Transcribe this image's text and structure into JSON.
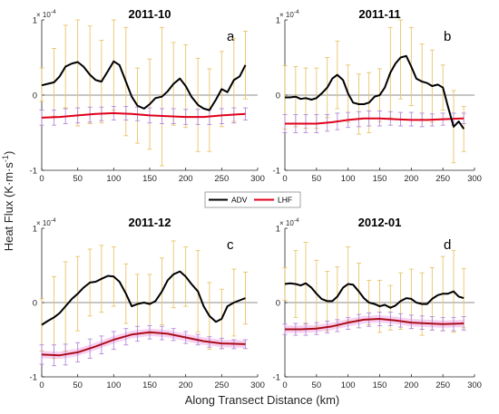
{
  "figure": {
    "ylabel": "Heat Flux (K·m·s",
    "ylabel_sup": "-1",
    "ylabel_tail": ")",
    "xlabel": "Along Transect Distance (km)",
    "exponent_base": "× 10",
    "exponent_power": "-4"
  },
  "legend": {
    "items": [
      {
        "label": "ADV",
        "color": "#000000"
      },
      {
        "label": "LHF",
        "color": "#e0001a"
      }
    ]
  },
  "colors": {
    "adv": "#000000",
    "lhf": "#e0001a",
    "adv_err": "#e9c56a",
    "lhf_err": "#b48ad8",
    "lhf_shade": "#f3c3ee",
    "zero_line": "#8c8c8c"
  },
  "chart_data": [
    {
      "type": "line",
      "title": "2011-10",
      "panel_label": "a",
      "xlim": [
        0,
        300
      ],
      "ylim": [
        -1,
        1
      ],
      "xticks": [
        "0",
        "50",
        "100",
        "150",
        "200",
        "250",
        "300"
      ],
      "yticks": [
        "-1",
        "0",
        "1"
      ],
      "y_unit": "1e-4",
      "adv": {
        "x": [
          0,
          8,
          17,
          25,
          33,
          42,
          50,
          58,
          67,
          75,
          83,
          92,
          100,
          108,
          117,
          125,
          133,
          142,
          150,
          158,
          167,
          175,
          183,
          192,
          200,
          208,
          217,
          225,
          233,
          242,
          250,
          258,
          267,
          275,
          283
        ],
        "y": [
          0.13,
          0.15,
          0.17,
          0.25,
          0.38,
          0.42,
          0.44,
          0.38,
          0.27,
          0.2,
          0.18,
          0.32,
          0.45,
          0.4,
          0.18,
          -0.02,
          -0.14,
          -0.18,
          -0.12,
          -0.04,
          -0.02,
          0.05,
          0.15,
          0.22,
          0.12,
          -0.02,
          -0.13,
          -0.18,
          -0.2,
          -0.06,
          0.08,
          0.04,
          0.2,
          0.25,
          0.4
        ]
      },
      "adv_err": {
        "x": [
          0,
          17,
          33,
          50,
          67,
          83,
          100,
          117,
          133,
          150,
          167,
          183,
          200,
          217,
          233,
          250,
          267,
          283
        ],
        "y": [
          0.14,
          0.17,
          0.38,
          0.44,
          0.27,
          0.18,
          0.45,
          0.18,
          -0.14,
          -0.12,
          -0.02,
          0.15,
          0.12,
          -0.13,
          -0.2,
          0.08,
          0.2,
          0.4
        ],
        "err": [
          0.22,
          0.45,
          0.55,
          0.85,
          0.65,
          0.55,
          0.65,
          0.72,
          0.5,
          0.6,
          0.92,
          0.55,
          0.55,
          0.62,
          0.55,
          0.5,
          0.55,
          0.45
        ]
      },
      "lhf": {
        "x": [
          0,
          25,
          50,
          75,
          100,
          125,
          150,
          175,
          200,
          225,
          250,
          283
        ],
        "y": [
          -0.3,
          -0.29,
          -0.27,
          -0.25,
          -0.24,
          -0.25,
          -0.27,
          -0.28,
          -0.29,
          -0.29,
          -0.27,
          -0.25
        ]
      },
      "lhf_err": {
        "x": [
          0,
          17,
          33,
          50,
          67,
          83,
          100,
          117,
          133,
          150,
          167,
          183,
          200,
          217,
          233,
          250,
          267,
          283
        ],
        "y": [
          -0.3,
          -0.3,
          -0.28,
          -0.27,
          -0.26,
          -0.25,
          -0.24,
          -0.24,
          -0.25,
          -0.27,
          -0.28,
          -0.28,
          -0.29,
          -0.29,
          -0.29,
          -0.28,
          -0.27,
          -0.25
        ],
        "err": [
          0.1,
          0.1,
          0.1,
          0.1,
          0.1,
          0.09,
          0.09,
          0.09,
          0.09,
          0.1,
          0.1,
          0.1,
          0.1,
          0.1,
          0.1,
          0.1,
          0.1,
          0.08
        ]
      },
      "lhf_shaded": false
    },
    {
      "type": "line",
      "title": "2011-11",
      "panel_label": "b",
      "xlim": [
        0,
        300
      ],
      "ylim": [
        -1,
        1
      ],
      "xticks": [
        "0",
        "50",
        "100",
        "150",
        "200",
        "250",
        "300"
      ],
      "yticks": [
        "-1",
        "0",
        "1"
      ],
      "y_unit": "1e-4",
      "adv": {
        "x": [
          0,
          8,
          17,
          25,
          33,
          42,
          50,
          58,
          67,
          75,
          83,
          92,
          100,
          108,
          117,
          125,
          133,
          142,
          150,
          158,
          167,
          175,
          183,
          192,
          200,
          208,
          217,
          225,
          233,
          242,
          250,
          258,
          267,
          275,
          283
        ],
        "y": [
          -0.03,
          -0.03,
          -0.02,
          -0.05,
          -0.04,
          -0.06,
          -0.04,
          0.02,
          0.1,
          0.22,
          0.27,
          0.2,
          0.02,
          -0.1,
          -0.12,
          -0.12,
          -0.1,
          -0.02,
          0.0,
          0.1,
          0.3,
          0.42,
          0.5,
          0.52,
          0.38,
          0.22,
          0.18,
          0.16,
          0.12,
          0.14,
          0.1,
          -0.15,
          -0.42,
          -0.35,
          -0.45
        ]
      },
      "adv_err": {
        "x": [
          0,
          17,
          33,
          50,
          67,
          83,
          100,
          117,
          133,
          150,
          167,
          183,
          200,
          217,
          233,
          250,
          267,
          283
        ],
        "y": [
          -0.03,
          -0.02,
          -0.04,
          -0.04,
          0.1,
          0.27,
          0.02,
          -0.12,
          -0.1,
          0.0,
          0.3,
          0.5,
          0.38,
          0.18,
          0.12,
          0.1,
          -0.42,
          -0.45
        ],
        "err": [
          0.42,
          0.4,
          0.4,
          0.4,
          0.4,
          0.45,
          0.38,
          0.4,
          0.4,
          0.35,
          0.6,
          0.55,
          0.52,
          0.5,
          0.48,
          0.3,
          0.48,
          0.3
        ]
      },
      "lhf": {
        "x": [
          0,
          25,
          50,
          75,
          100,
          125,
          150,
          175,
          200,
          225,
          250,
          283
        ],
        "y": [
          -0.38,
          -0.38,
          -0.38,
          -0.36,
          -0.33,
          -0.31,
          -0.31,
          -0.32,
          -0.33,
          -0.33,
          -0.32,
          -0.31
        ]
      },
      "lhf_err": {
        "x": [
          0,
          17,
          33,
          50,
          67,
          83,
          100,
          117,
          133,
          150,
          167,
          183,
          200,
          217,
          233,
          250,
          267,
          283
        ],
        "y": [
          -0.38,
          -0.38,
          -0.38,
          -0.38,
          -0.37,
          -0.35,
          -0.33,
          -0.32,
          -0.31,
          -0.31,
          -0.31,
          -0.32,
          -0.32,
          -0.33,
          -0.33,
          -0.32,
          -0.32,
          -0.31
        ],
        "err": [
          0.12,
          0.12,
          0.12,
          0.12,
          0.11,
          0.11,
          0.1,
          0.1,
          0.1,
          0.1,
          0.09,
          0.09,
          0.09,
          0.09,
          0.08,
          0.08,
          0.08,
          0.07
        ]
      },
      "lhf_shaded": false
    },
    {
      "type": "line",
      "title": "2011-12",
      "panel_label": "c",
      "xlim": [
        0,
        300
      ],
      "ylim": [
        -1,
        1
      ],
      "xticks": [
        "0",
        "50",
        "100",
        "150",
        "200",
        "250",
        "300"
      ],
      "yticks": [
        "-1",
        "0",
        "1"
      ],
      "y_unit": "1e-4",
      "adv": {
        "x": [
          0,
          8,
          17,
          25,
          33,
          42,
          50,
          58,
          67,
          75,
          83,
          92,
          100,
          108,
          117,
          125,
          133,
          142,
          150,
          158,
          167,
          175,
          183,
          192,
          200,
          208,
          217,
          225,
          233,
          242,
          250,
          258,
          267,
          275,
          283
        ],
        "y": [
          -0.3,
          -0.25,
          -0.2,
          -0.14,
          -0.05,
          0.05,
          0.12,
          0.2,
          0.27,
          0.28,
          0.32,
          0.36,
          0.35,
          0.28,
          0.12,
          -0.05,
          -0.02,
          0.0,
          -0.02,
          0.02,
          0.15,
          0.3,
          0.38,
          0.42,
          0.35,
          0.25,
          0.15,
          -0.05,
          -0.18,
          -0.26,
          -0.22,
          -0.05,
          0.0,
          0.03,
          0.06
        ]
      },
      "adv_err": {
        "x": [
          0,
          17,
          33,
          50,
          67,
          83,
          100,
          117,
          133,
          150,
          167,
          183,
          200,
          217,
          233,
          250,
          267,
          283
        ],
        "y": [
          -0.3,
          -0.2,
          -0.05,
          0.12,
          0.27,
          0.32,
          0.35,
          0.12,
          -0.02,
          -0.02,
          0.15,
          0.38,
          0.35,
          0.15,
          -0.18,
          -0.22,
          0.0,
          0.06
        ],
        "err": [
          0.35,
          0.55,
          0.6,
          0.5,
          0.45,
          0.45,
          0.4,
          0.4,
          0.4,
          0.4,
          0.45,
          0.45,
          0.4,
          0.55,
          0.45,
          0.4,
          0.45,
          0.35
        ]
      },
      "lhf": {
        "x": [
          0,
          25,
          50,
          75,
          100,
          125,
          150,
          175,
          200,
          225,
          250,
          283
        ],
        "y": [
          -0.7,
          -0.71,
          -0.67,
          -0.59,
          -0.5,
          -0.43,
          -0.4,
          -0.42,
          -0.47,
          -0.52,
          -0.55,
          -0.56
        ]
      },
      "lhf_err": {
        "x": [
          0,
          17,
          33,
          50,
          67,
          83,
          100,
          117,
          133,
          150,
          167,
          183,
          200,
          217,
          233,
          250,
          267,
          283
        ],
        "y": [
          -0.7,
          -0.71,
          -0.7,
          -0.67,
          -0.62,
          -0.57,
          -0.51,
          -0.46,
          -0.42,
          -0.4,
          -0.41,
          -0.43,
          -0.47,
          -0.5,
          -0.53,
          -0.55,
          -0.56,
          -0.56
        ],
        "err": [
          0.13,
          0.14,
          0.14,
          0.13,
          0.13,
          0.12,
          0.12,
          0.11,
          0.1,
          0.09,
          0.09,
          0.08,
          0.08,
          0.07,
          0.07,
          0.07,
          0.06,
          0.06
        ]
      },
      "lhf_shaded": true
    },
    {
      "type": "line",
      "title": "2012-01",
      "panel_label": "d",
      "xlim": [
        0,
        300
      ],
      "ylim": [
        -1,
        1
      ],
      "xticks": [
        "0",
        "50",
        "100",
        "150",
        "200",
        "250",
        "300"
      ],
      "yticks": [
        "-1",
        "0",
        "1"
      ],
      "y_unit": "1e-4",
      "adv": {
        "x": [
          0,
          8,
          17,
          25,
          33,
          42,
          50,
          58,
          67,
          75,
          83,
          92,
          100,
          108,
          117,
          125,
          133,
          142,
          150,
          158,
          167,
          175,
          183,
          192,
          200,
          208,
          217,
          225,
          233,
          242,
          250,
          258,
          267,
          275,
          283
        ],
        "y": [
          0.25,
          0.26,
          0.25,
          0.23,
          0.26,
          0.2,
          0.12,
          0.05,
          0.02,
          0.02,
          0.08,
          0.2,
          0.25,
          0.24,
          0.15,
          0.06,
          0.0,
          -0.02,
          -0.05,
          -0.03,
          -0.07,
          -0.04,
          0.02,
          0.06,
          0.05,
          0.0,
          -0.02,
          -0.02,
          0.05,
          0.1,
          0.12,
          0.12,
          0.15,
          0.08,
          0.06
        ]
      },
      "adv_err": {
        "x": [
          0,
          17,
          33,
          50,
          67,
          83,
          100,
          117,
          133,
          150,
          167,
          183,
          200,
          217,
          233,
          250,
          267,
          283
        ],
        "y": [
          0.25,
          0.25,
          0.26,
          0.12,
          0.02,
          0.08,
          0.25,
          0.15,
          0.0,
          -0.05,
          -0.07,
          0.02,
          0.05,
          -0.02,
          0.05,
          0.12,
          0.15,
          0.06
        ],
        "err": [
          0.22,
          0.45,
          0.55,
          0.45,
          0.4,
          0.4,
          0.5,
          0.38,
          0.3,
          0.35,
          0.3,
          0.38,
          0.4,
          0.42,
          0.42,
          0.5,
          0.55,
          0.4
        ]
      },
      "lhf": {
        "x": [
          0,
          25,
          50,
          75,
          100,
          125,
          150,
          175,
          200,
          225,
          250,
          283
        ],
        "y": [
          -0.36,
          -0.36,
          -0.35,
          -0.32,
          -0.27,
          -0.23,
          -0.22,
          -0.24,
          -0.27,
          -0.28,
          -0.29,
          -0.28
        ]
      },
      "lhf_err": {
        "x": [
          0,
          17,
          33,
          50,
          67,
          83,
          100,
          117,
          133,
          150,
          167,
          183,
          200,
          217,
          233,
          250,
          267,
          283
        ],
        "y": [
          -0.36,
          -0.36,
          -0.36,
          -0.35,
          -0.33,
          -0.31,
          -0.28,
          -0.25,
          -0.23,
          -0.22,
          -0.22,
          -0.24,
          -0.26,
          -0.27,
          -0.28,
          -0.29,
          -0.29,
          -0.28
        ],
        "err": [
          0.07,
          0.08,
          0.08,
          0.08,
          0.08,
          0.08,
          0.08,
          0.09,
          0.09,
          0.09,
          0.09,
          0.09,
          0.09,
          0.09,
          0.09,
          0.09,
          0.09,
          0.09
        ]
      },
      "lhf_shaded": true
    }
  ]
}
